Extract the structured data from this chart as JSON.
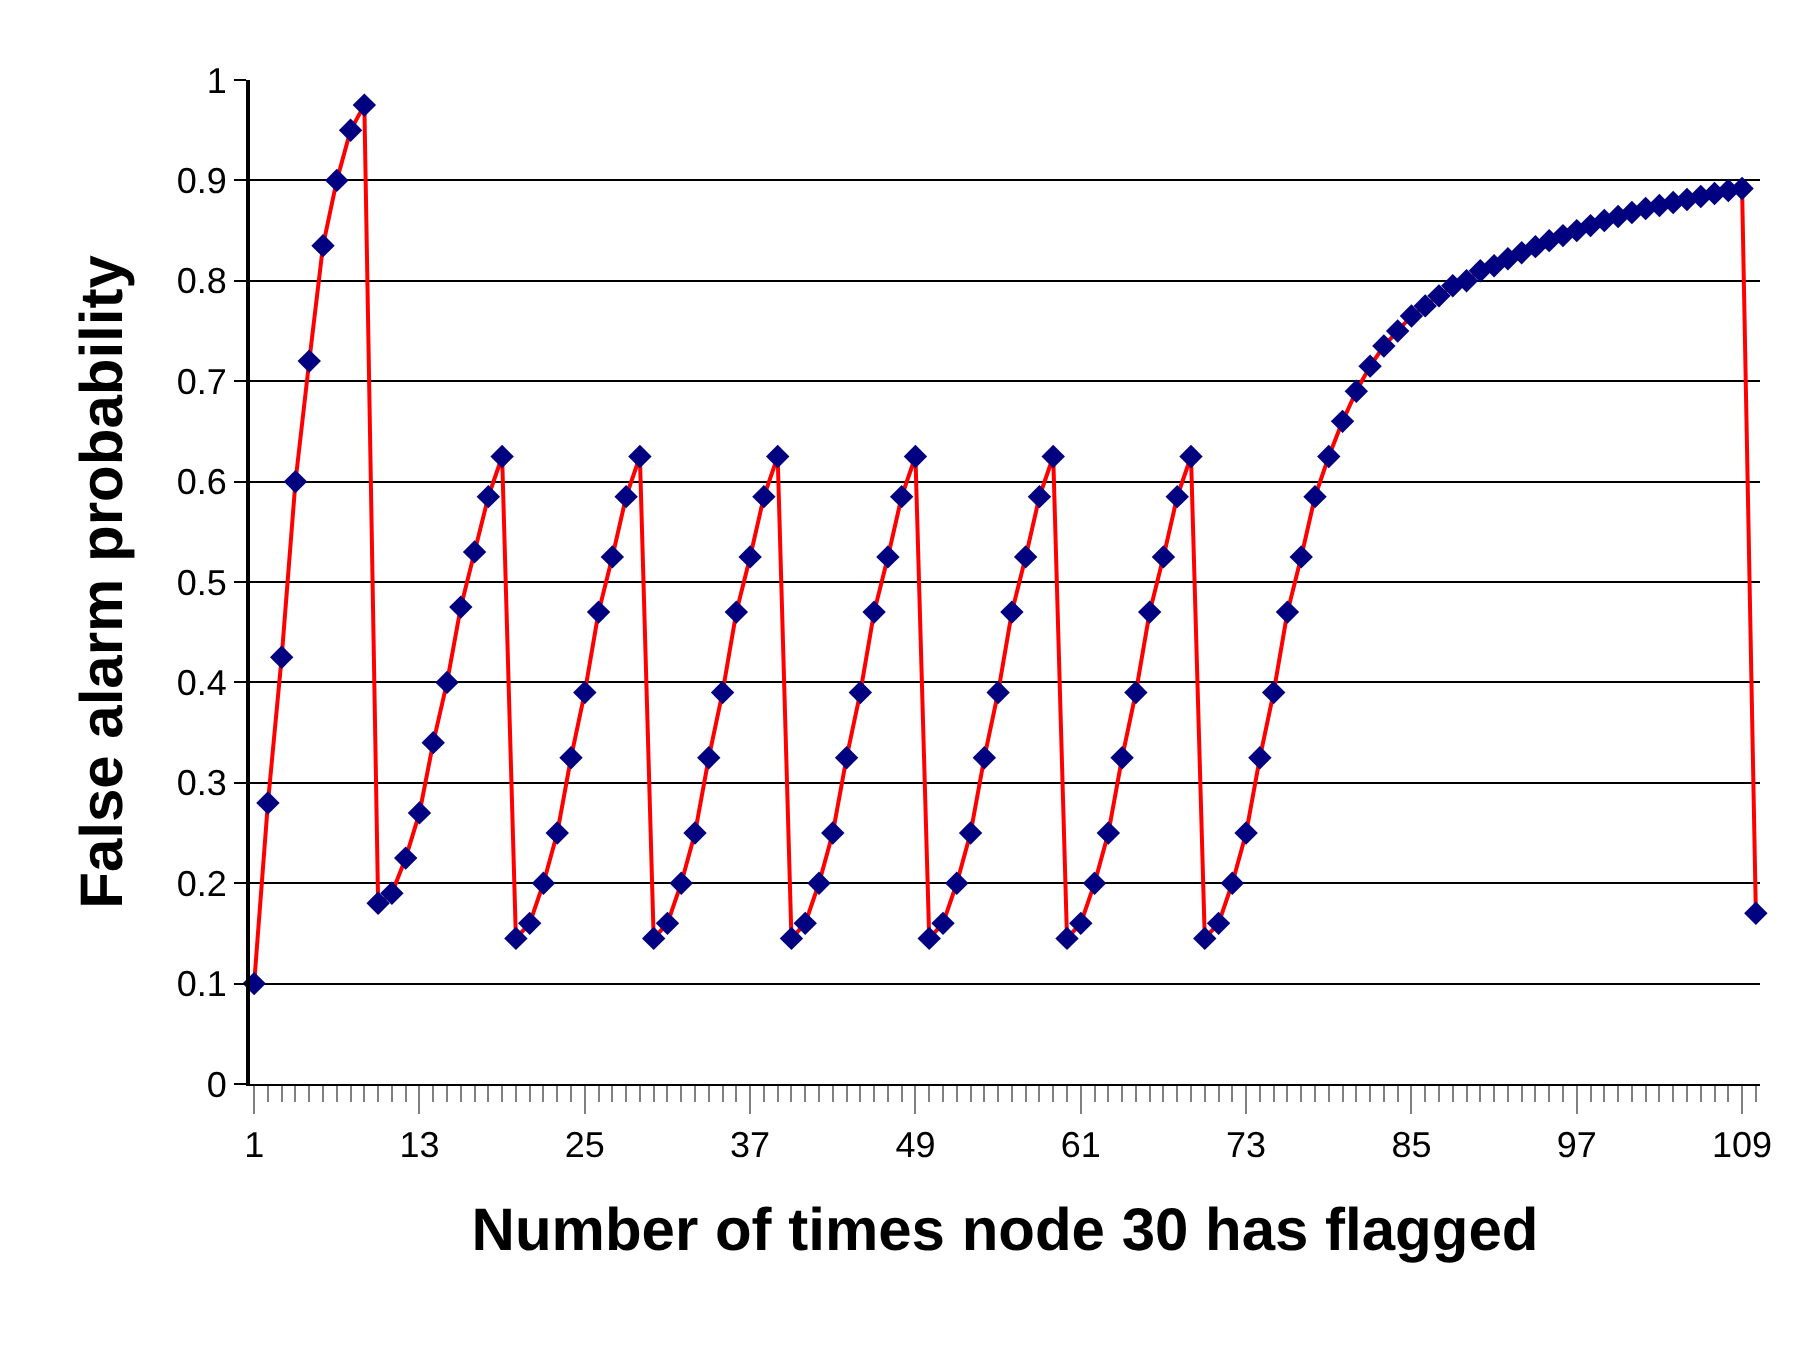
{
  "chart_data": {
    "type": "line",
    "xlabel": "Number of times node 30 has flagged",
    "ylabel": "False alarm probability",
    "categories": [
      "1",
      null,
      null,
      null,
      null,
      null,
      null,
      null,
      null,
      null,
      null,
      null,
      "13",
      null,
      null,
      null,
      null,
      null,
      null,
      null,
      null,
      null,
      null,
      null,
      "25",
      null,
      null,
      null,
      null,
      null,
      null,
      null,
      null,
      null,
      null,
      null,
      "37",
      null,
      null,
      null,
      null,
      null,
      null,
      null,
      null,
      null,
      null,
      null,
      "49",
      null,
      null,
      null,
      null,
      null,
      null,
      null,
      null,
      null,
      null,
      null,
      "61",
      null,
      null,
      null,
      null,
      null,
      null,
      null,
      null,
      null,
      null,
      null,
      "73",
      null,
      null,
      null,
      null,
      null,
      null,
      null,
      null,
      null,
      null,
      null,
      "85",
      null,
      null,
      null,
      null,
      null,
      null,
      null,
      null,
      null,
      null,
      null,
      "97",
      null,
      null,
      null,
      null,
      null,
      null,
      null,
      null,
      null,
      null,
      null,
      "109",
      null
    ],
    "series": [
      {
        "color": "#ff0000",
        "values": [
          0.1,
          0.28,
          0.425,
          0.6,
          0.72,
          0.835,
          0.9,
          0.95,
          0.975,
          0.18,
          0.19,
          0.225,
          0.27,
          0.34,
          0.4,
          0.475,
          0.53,
          0.585,
          0.625,
          0.145,
          0.16,
          0.2,
          0.25,
          0.325,
          0.39,
          0.47,
          0.525,
          0.585,
          0.625,
          0.145,
          0.16,
          0.2,
          0.25,
          0.325,
          0.39,
          0.47,
          0.525,
          0.585,
          0.625,
          0.145,
          0.16,
          0.2,
          0.25,
          0.325,
          0.39,
          0.47,
          0.525,
          0.585,
          0.625,
          0.145,
          0.16,
          0.2,
          0.25,
          0.325,
          0.39,
          0.47,
          0.525,
          0.585,
          0.625,
          0.145,
          0.16,
          0.2,
          0.25,
          0.325,
          0.39,
          0.47,
          0.525,
          0.585,
          0.625,
          0.145,
          0.16,
          0.2,
          0.25,
          0.325,
          0.39,
          0.47,
          0.525,
          0.585,
          0.625,
          0.66,
          0.69,
          0.715,
          0.735,
          0.75,
          0.765,
          0.775,
          0.785,
          0.795,
          0.8,
          0.81,
          0.815,
          0.822,
          0.828,
          0.834,
          0.84,
          0.845,
          0.85,
          0.855,
          0.86,
          0.864,
          0.868,
          0.872,
          0.875,
          0.878,
          0.881,
          0.884,
          0.887,
          0.89,
          0.892,
          0.17
        ]
      }
    ],
    "ylim": [
      0,
      1
    ],
    "yticks": [
      0,
      0.1,
      0.2,
      0.3,
      0.4,
      0.5,
      0.6,
      0.7,
      0.8,
      0.9,
      1
    ],
    "grid": "y",
    "marker": "diamond",
    "line_style": "solid"
  }
}
